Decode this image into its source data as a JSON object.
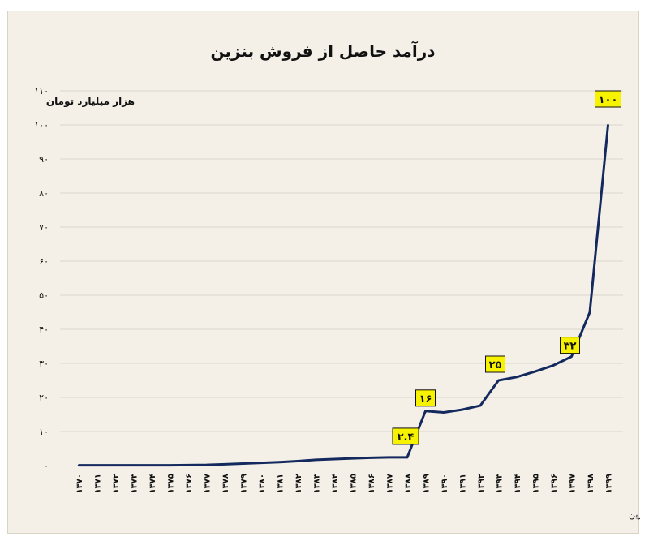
{
  "chart_data": {
    "type": "line",
    "title": "درآمد حاصل از فروش بنزین",
    "ylabel": "هزار میلیارد تومان",
    "xlabel": "",
    "ylim": [
      0,
      110
    ],
    "yticks": [
      0,
      10,
      20,
      30,
      40,
      50,
      60,
      70,
      80,
      90,
      100,
      110
    ],
    "ytick_labels": [
      "۰",
      "۱۰",
      "۲۰",
      "۳۰",
      "۴۰",
      "۵۰",
      "۶۰",
      "۷۰",
      "۸۰",
      "۹۰",
      "۱۰۰",
      "۱۱۰"
    ],
    "grid": true,
    "line_color": "#142a5e",
    "label_box_color": "#f7f200",
    "x": [
      "۱۳۷۰",
      "۱۳۷۱",
      "۱۳۷۲",
      "۱۳۷۳",
      "۱۳۷۴",
      "۱۳۷۵",
      "۱۳۷۶",
      "۱۳۷۷",
      "۱۳۷۸",
      "۱۳۷۹",
      "۱۳۸۰",
      "۱۳۸۱",
      "۱۳۸۲",
      "۱۳۸۳",
      "۱۳۸۴",
      "۱۳۸۵",
      "۱۳۸۶",
      "۱۳۸۷",
      "۱۳۸۸",
      "۱۳۸۹",
      "۱۳۹۰",
      "۱۳۹۱",
      "۱۳۹۲",
      "۱۳۹۳",
      "۱۳۹۴",
      "۱۳۹۵",
      "۱۳۹۶",
      "۱۳۹۷",
      "۱۳۹۸",
      "۱۳۹۹"
    ],
    "values": [
      0.1,
      0.1,
      0.1,
      0.1,
      0.1,
      0.1,
      0.15,
      0.2,
      0.4,
      0.6,
      0.8,
      1.0,
      1.3,
      1.7,
      1.9,
      2.1,
      2.3,
      2.4,
      2.4,
      16.0,
      15.6,
      16.4,
      17.6,
      25.0,
      26.0,
      27.6,
      29.4,
      32.0,
      45.0,
      100.0
    ],
    "data_labels": [
      {
        "index": 18,
        "text": "۲.۴"
      },
      {
        "index": 19,
        "text": "۱۶"
      },
      {
        "index": 23,
        "text": "۲۵"
      },
      {
        "index": 27,
        "text": "۳۲"
      },
      {
        "index": 29,
        "text": "۱۰۰"
      }
    ]
  },
  "source_note": "تحلیل و استنتاج: احسان سلطانی بر اساس داده های مصرف، قیمت و برآورد درآمد صادرات بنزین"
}
